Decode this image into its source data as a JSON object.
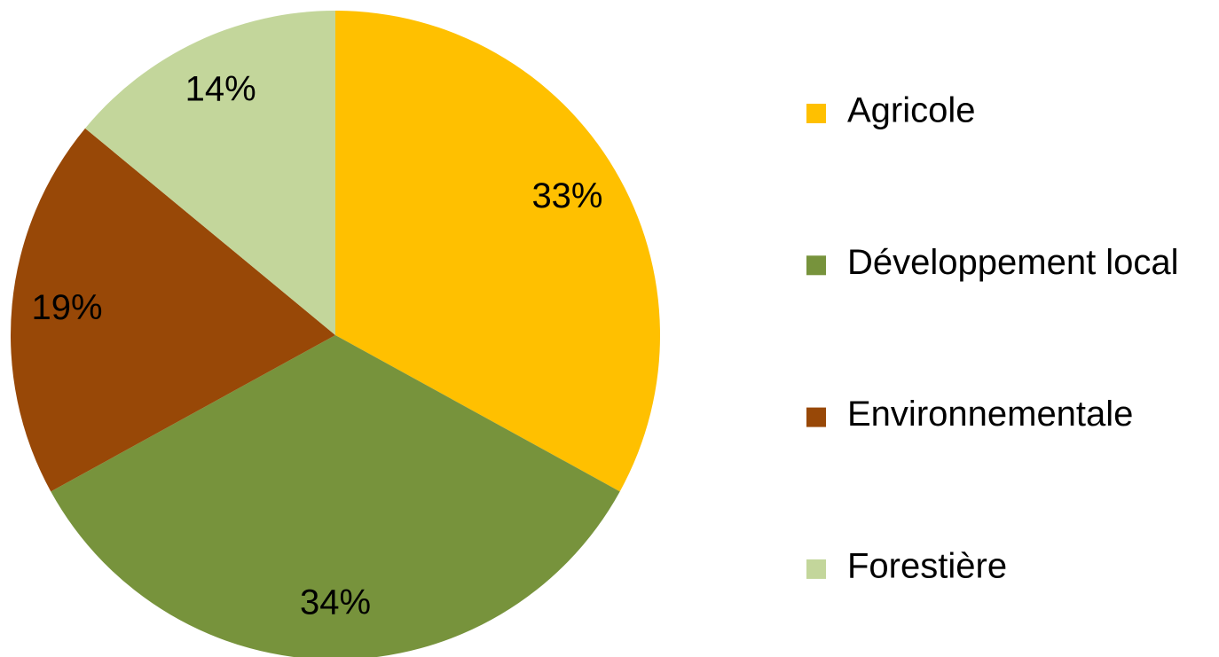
{
  "chart_data": {
    "type": "pie",
    "categories": [
      "Agricole",
      "Développement local",
      "Environnementale",
      "Forestière"
    ],
    "values": [
      33,
      34,
      19,
      14
    ],
    "value_labels": [
      "33%",
      "34%",
      "19%",
      "14%"
    ],
    "colors": [
      "#FFC000",
      "#77933C",
      "#984807",
      "#C3D69B"
    ],
    "legend": "right"
  }
}
